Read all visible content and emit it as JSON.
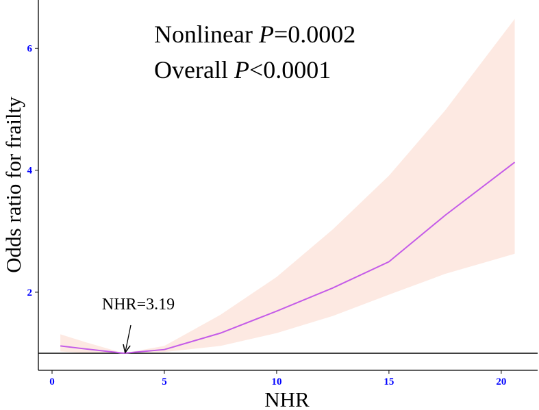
{
  "chart_data": {
    "type": "line",
    "x_label": "NHR",
    "y_label": "Odds ratio for frailty",
    "annotation_lines": [
      [
        "Nonlinear ",
        "P",
        "=0.0002"
      ],
      [
        "Overall ",
        "P",
        "<0.0001"
      ]
    ],
    "point_label": "NHR=3.19",
    "x": [
      0.37,
      1.5,
      3.19,
      5,
      7.5,
      10,
      12.5,
      15,
      17.5,
      20.6
    ],
    "values": [
      1.12,
      1.07,
      1.0,
      1.06,
      1.33,
      1.69,
      2.07,
      2.5,
      3.26,
      4.13
    ],
    "ci_upper": [
      1.31,
      1.18,
      1.0,
      1.12,
      1.63,
      2.25,
      3.03,
      3.91,
      4.98,
      6.48
    ],
    "ci_lower": [
      1.03,
      1.0,
      1.0,
      1.02,
      1.12,
      1.33,
      1.61,
      1.96,
      2.3,
      2.63
    ],
    "color": "#c45be8",
    "band_color": "#fde9e2",
    "reference_line": 1,
    "xlim": [
      -0.61,
      21.62
    ],
    "ylim": [
      0.72,
      6.79
    ],
    "xticks": [
      0,
      5,
      10,
      15,
      20
    ],
    "yticks": [
      2,
      4,
      6
    ]
  }
}
